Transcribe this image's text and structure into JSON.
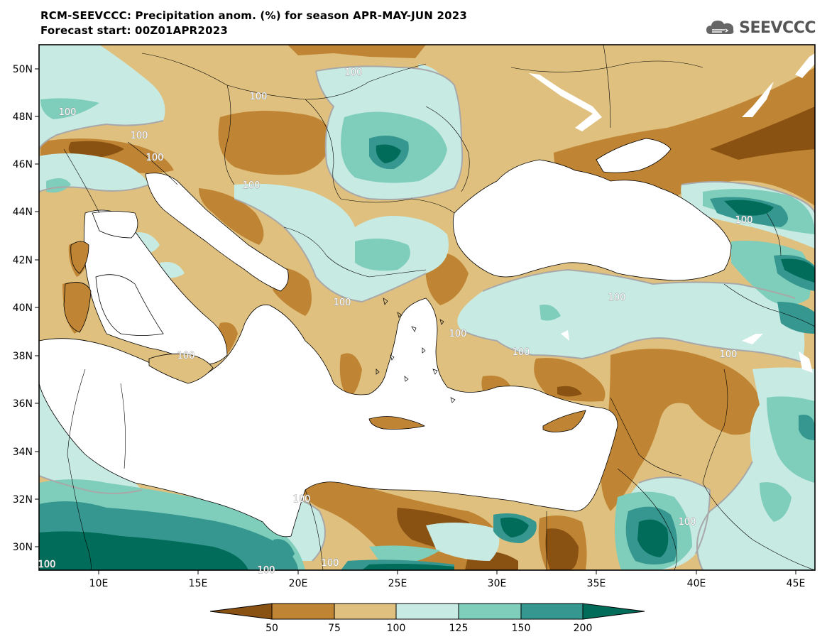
{
  "header": {
    "title_line1": "RCM-SEEVCCC: Precipitation anom. (%) for season APR-MAY-JUN 2023",
    "title_line2": "Forecast start: 00Z01APR2023",
    "logo_text": "SEEVCCC",
    "logo_icon": "cloud-icon"
  },
  "map": {
    "lat_labels": [
      "50N",
      "48N",
      "46N",
      "44N",
      "42N",
      "40N",
      "38N",
      "36N",
      "34N",
      "32N",
      "30N"
    ],
    "lon_labels": [
      "10E",
      "15E",
      "20E",
      "25E",
      "30E",
      "35E",
      "40E",
      "45E"
    ],
    "contour_labels": [
      "100",
      "100",
      "100",
      "100",
      "100",
      "100",
      "100",
      "100",
      "100",
      "100",
      "100",
      "100",
      "100",
      "100",
      "100",
      "100",
      "100",
      "100"
    ],
    "colors": {
      "lt50": "#8a5212",
      "50_75": "#c08534",
      "75_100": "#dfc07f",
      "100_125": "#c7eae3",
      "125_150": "#7fcdbb",
      "150_200": "#35978f",
      "gt200": "#016c59",
      "sea": "#ffffff",
      "contour": "#a8a8a8"
    }
  },
  "colorbar": {
    "tick_labels": [
      "50",
      "75",
      "100",
      "125",
      "150",
      "200"
    ],
    "colors": [
      "#8a5212",
      "#c08534",
      "#dfc07f",
      "#c7eae3",
      "#7fcdbb",
      "#35978f",
      "#016c59"
    ]
  }
}
